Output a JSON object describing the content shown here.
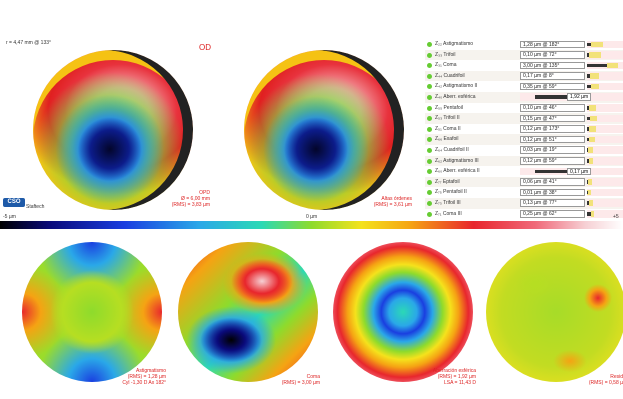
{
  "header": {
    "radius": "r = 4,47 mm @ 133°",
    "eye": "OD"
  },
  "logo": {
    "text": "CSO",
    "brand": "Staftech"
  },
  "main_maps": [
    {
      "title": "OPD",
      "line1": "Ø = 6,00 mm",
      "line2": "(RMS) = 3,83 µm"
    },
    {
      "title": "Altas órdenes",
      "line1": "(RMS) = 3,61 µm"
    }
  ],
  "scale": {
    "min": "-5 µm",
    "mid": "0 µm",
    "max": "+5"
  },
  "zernike": [
    {
      "label": "Z₂₂ Astigmatismo",
      "value": "1,28 µm @ 182°",
      "bar": 0.1,
      "yellow": 0.35
    },
    {
      "label": "Z₃₃ Trifoil",
      "value": "0,10 µm @ 72°",
      "bar": 0.05,
      "yellow": 0.35
    },
    {
      "label": "Z₃₁ Coma",
      "value": "3,00 µm @ 135°",
      "bar": 0.55,
      "yellow": 0.3
    },
    {
      "label": "Z₄₄ Cuadrifoil",
      "value": "0,17 µm @ 8°",
      "bar": 0.07,
      "yellow": 0.25
    },
    {
      "label": "Z₄₂ Astigmatismo II",
      "value": "0,35 µm @ 59°",
      "bar": 0.12,
      "yellow": 0.2
    },
    {
      "label": "Z₄₀ Aberr. esférica",
      "value": "",
      "bar": 0.0,
      "yellow": 0.0,
      "outside": "1,92 µm"
    },
    {
      "label": "Z₅₅ Pentafoil",
      "value": "0,10 µm @ 46°",
      "bar": 0.06,
      "yellow": 0.2
    },
    {
      "label": "Z₅₃ Trifoil II",
      "value": "0,15 µm @ 47°",
      "bar": 0.07,
      "yellow": 0.2
    },
    {
      "label": "Z₅₁ Coma II",
      "value": "0,12 µm @ 173°",
      "bar": 0.06,
      "yellow": 0.18
    },
    {
      "label": "Z₆₆ Exafoil",
      "value": "0,12 µm @ 51°",
      "bar": 0.06,
      "yellow": 0.15
    },
    {
      "label": "Z₆₄ Cuadrifoil II",
      "value": "0,03 µm @ 19°",
      "bar": 0.02,
      "yellow": 0.15
    },
    {
      "label": "Z₆₂ Astigmatismo III",
      "value": "0,12 µm @ 59°",
      "bar": 0.06,
      "yellow": 0.12
    },
    {
      "label": "Z₆₀ Aberr. esférica II",
      "value": "",
      "bar": 0.0,
      "yellow": 0.0,
      "outside": "0,17 µm"
    },
    {
      "label": "Z₇₇ Eptafoil",
      "value": "0,06 µm @ 41°",
      "bar": 0.03,
      "yellow": 0.1
    },
    {
      "label": "Z₇₅ Pentafoil II",
      "value": "0,01 µm @ 38°",
      "bar": 0.01,
      "yellow": 0.1
    },
    {
      "label": "Z₇₃ Trifoil III",
      "value": "0,13 µm @ 77°",
      "bar": 0.06,
      "yellow": 0.1
    },
    {
      "label": "Z₇₁ Coma III",
      "value": "0,25 µm @ 62°",
      "bar": 0.1,
      "yellow": 0.1
    }
  ],
  "small_maps": [
    {
      "title": "Astigmatismo",
      "line1": "(RMS) = 1,28 µm",
      "line2": "Cyl -1,30 D Ax 182°"
    },
    {
      "title": "Coma",
      "line1": "(RMS) = 3,00 µm"
    },
    {
      "title": "Aberración esférica",
      "line1": "(RMS) = 1,92 µm",
      "line2": "LSA = 11,43 D"
    },
    {
      "title": "Resid",
      "line1": "(RMS) = 0,58 µ"
    }
  ]
}
